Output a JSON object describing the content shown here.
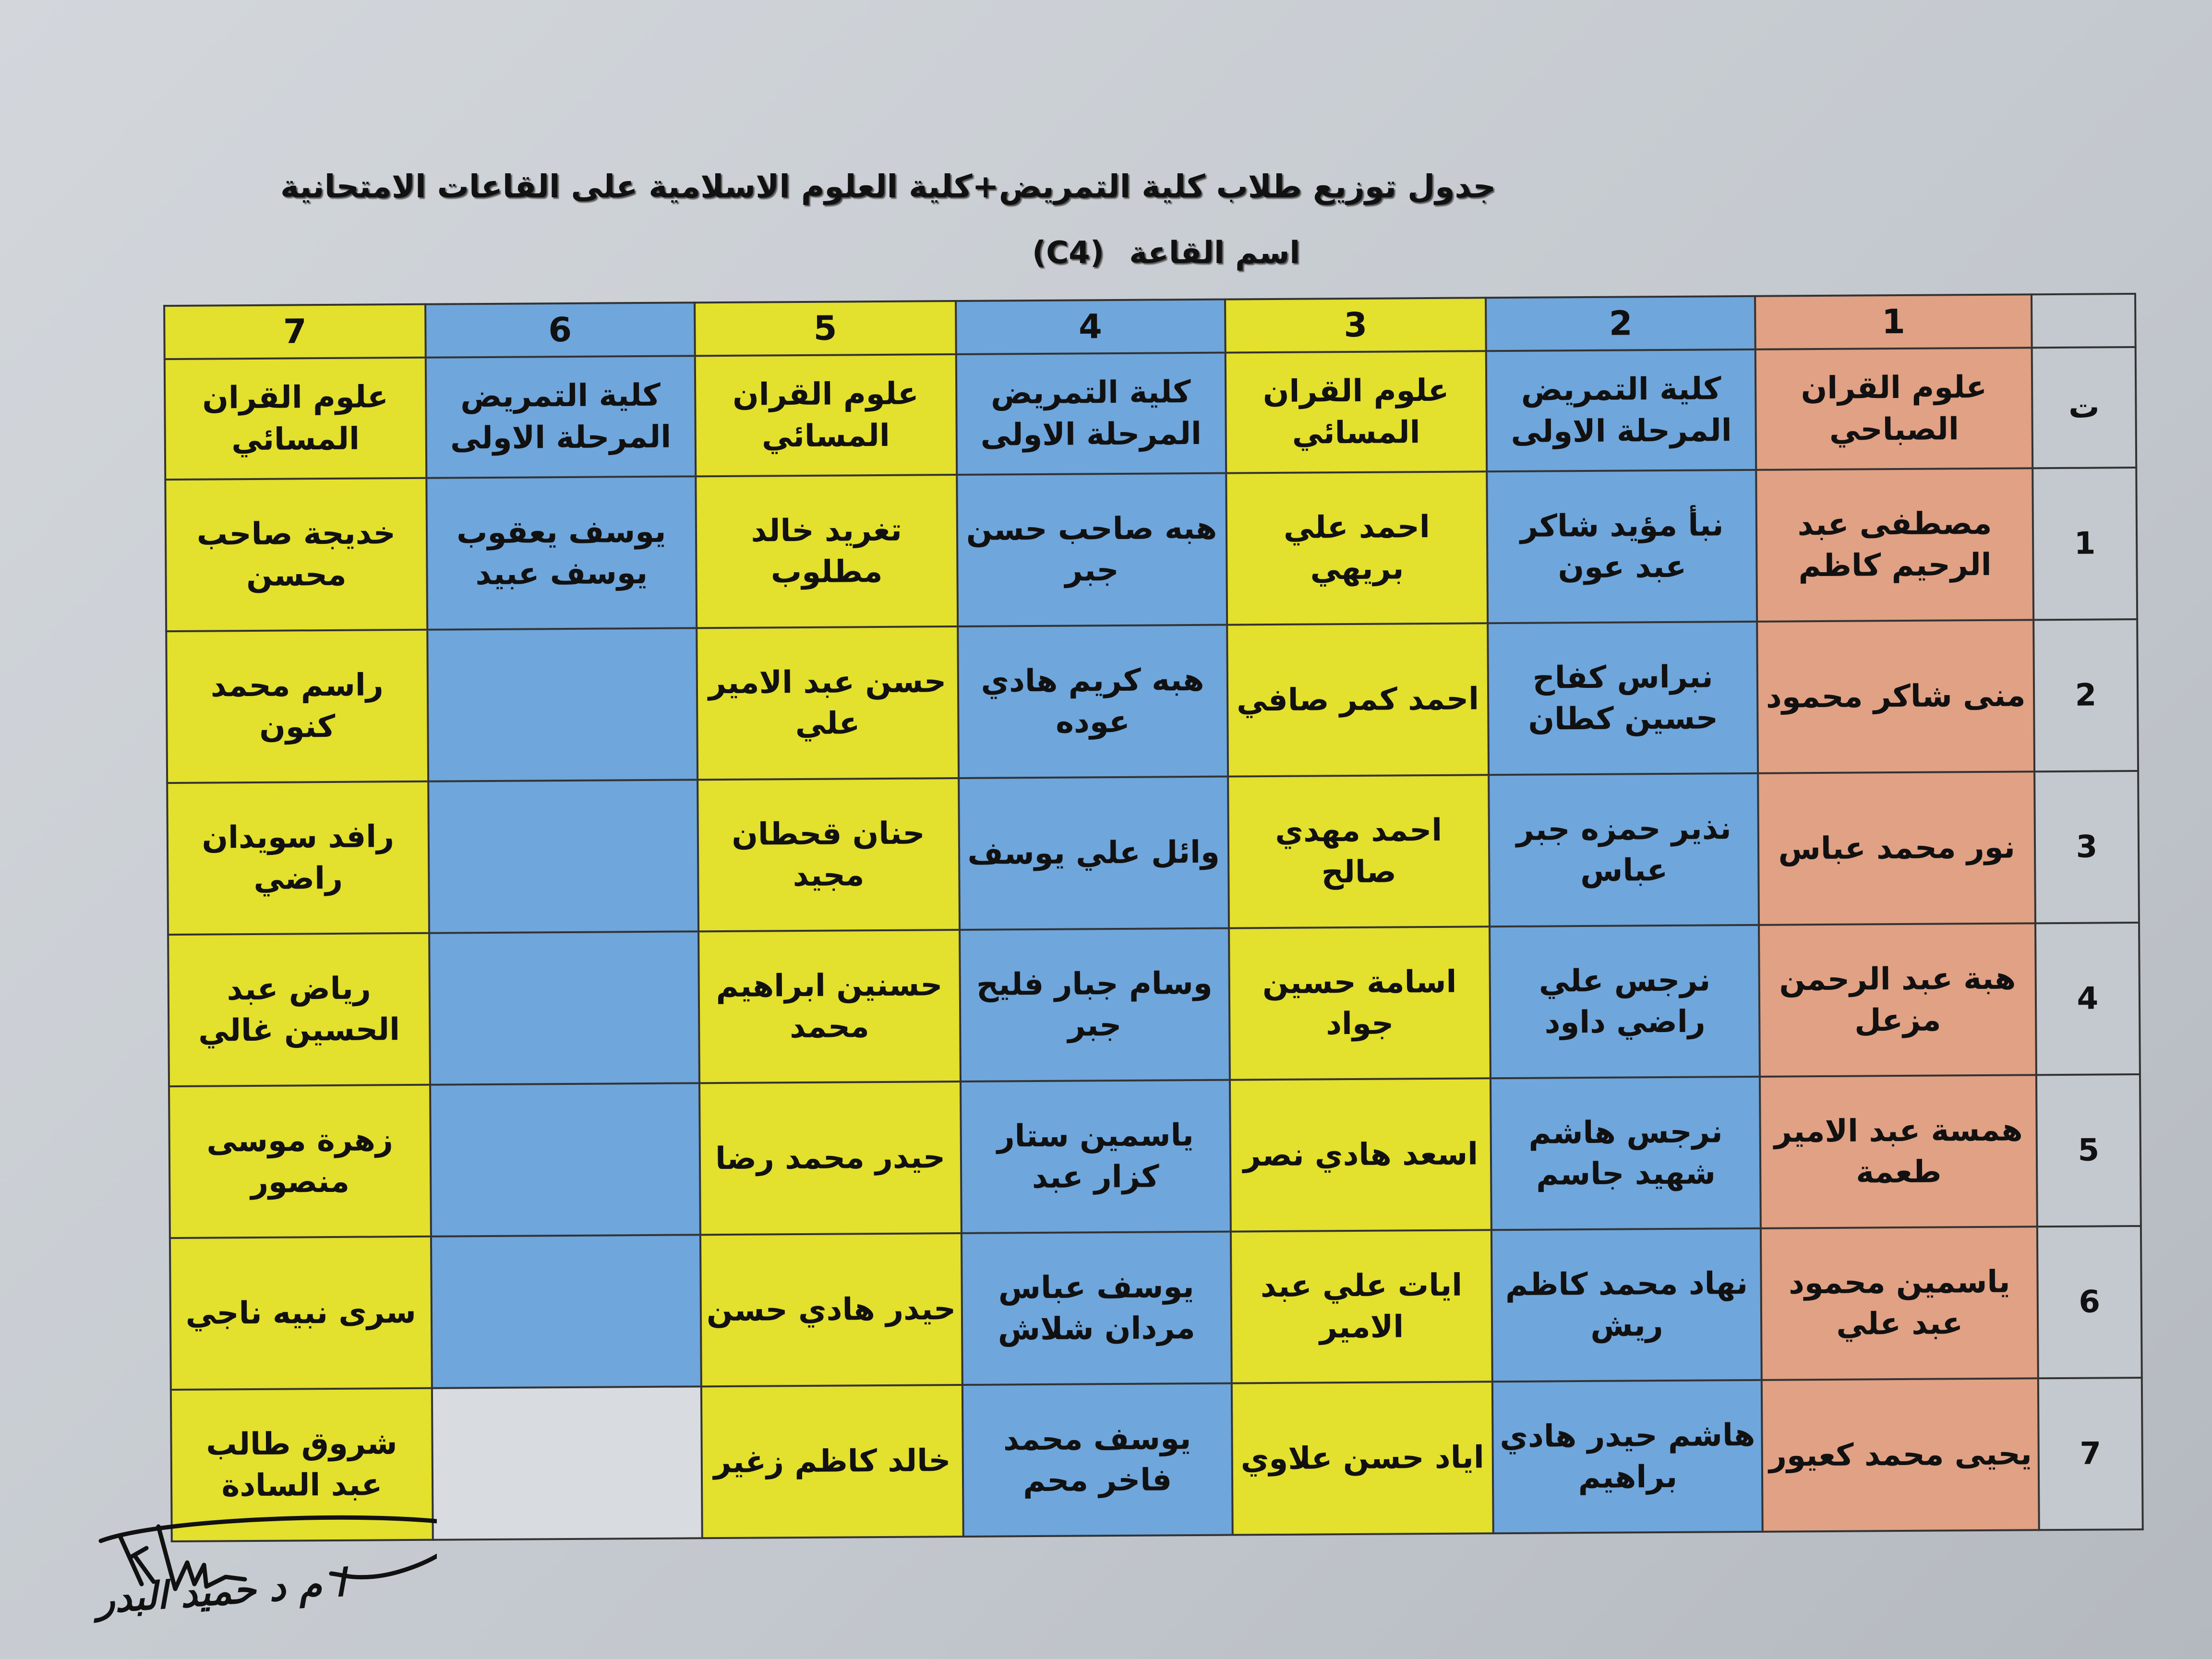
{
  "document": {
    "title": "جدول توزيع طلاب كلية التمريض+كلية العلوم الاسلامية على القاعات الامتحانية",
    "room_label": "اسم القاعة",
    "room_code": "(C4)"
  },
  "table": {
    "index_header": "ت",
    "columns": [
      {
        "number": "1",
        "header": "علوم القران الصباحي",
        "color": "#e0a184"
      },
      {
        "number": "2",
        "header": "كلية التمريض المرحلة الاولى",
        "color": "#6fa6dc"
      },
      {
        "number": "3",
        "header": "علوم القران المسائي",
        "color": "#e3e02e"
      },
      {
        "number": "4",
        "header": "كلية التمريض المرحلة الاولى",
        "color": "#6fa6dc"
      },
      {
        "number": "5",
        "header": "علوم القران المسائي",
        "color": "#e3e02e"
      },
      {
        "number": "6",
        "header": "كلية التمريض المرحلة الاولى",
        "color": "#6fa6dc"
      },
      {
        "number": "7",
        "header": "علوم القران المسائي",
        "color": "#e3e02e"
      }
    ],
    "rows": [
      {
        "index": "1",
        "cells": [
          "مصطفى عبد الرحيم كاظم",
          "نبأ مؤيد شاكر عبد عون",
          "احمد علي بريهي",
          "هبه صاحب حسن جبر",
          "تغريد خالد مطلوب",
          "يوسف يعقوب يوسف عبيد",
          "خديجة صاحب محسن"
        ]
      },
      {
        "index": "2",
        "cells": [
          "منى شاكر محمود",
          "نبراس كفاح حسين كطان",
          "احمد كمر صافي",
          "هبه كريم هادي عوده",
          "حسن عبد الامير علي",
          "",
          "راسم محمد كنون"
        ]
      },
      {
        "index": "3",
        "cells": [
          "نور محمد عباس",
          "نذير حمزه جبر عباس",
          "احمد مهدي صالح",
          "وائل علي يوسف",
          "حنان قحطان مجيد",
          "",
          "رافد سويدان راضي"
        ]
      },
      {
        "index": "4",
        "cells": [
          "هبة عبد الرحمن مزعل",
          "نرجس علي راضي داود",
          "اسامة حسين جواد",
          "وسام جبار فليح جبر",
          "حسنين ابراهيم محمد",
          "",
          "رياض عبد الحسين غالي"
        ]
      },
      {
        "index": "5",
        "cells": [
          "همسة عبد الامير طعمة",
          "نرجس هاشم شهيد جاسم",
          "اسعد هادي نصر",
          "ياسمين ستار كزار عبد",
          "حيدر محمد رضا",
          "",
          "زهرة موسى منصور"
        ]
      },
      {
        "index": "6",
        "cells": [
          "ياسمين محمود عبد علي",
          "نهاد محمد كاظم ريش",
          "ايات علي عبد الامير",
          "يوسف عباس مردان شلاش",
          "حيدر هادي حسن",
          "",
          "سرى نبيه ناجي"
        ]
      },
      {
        "index": "7",
        "cells": [
          "يحيى محمد كعيور",
          "هاشم حيدر هادي براهيم",
          "اياد حسن علاوي",
          "يوسف محمد فاخر محم",
          "خالد كاظم زغير",
          "",
          "شروق طالب عبد السادة"
        ]
      }
    ]
  },
  "signature": {
    "text": "ا م د حميد البدر"
  }
}
